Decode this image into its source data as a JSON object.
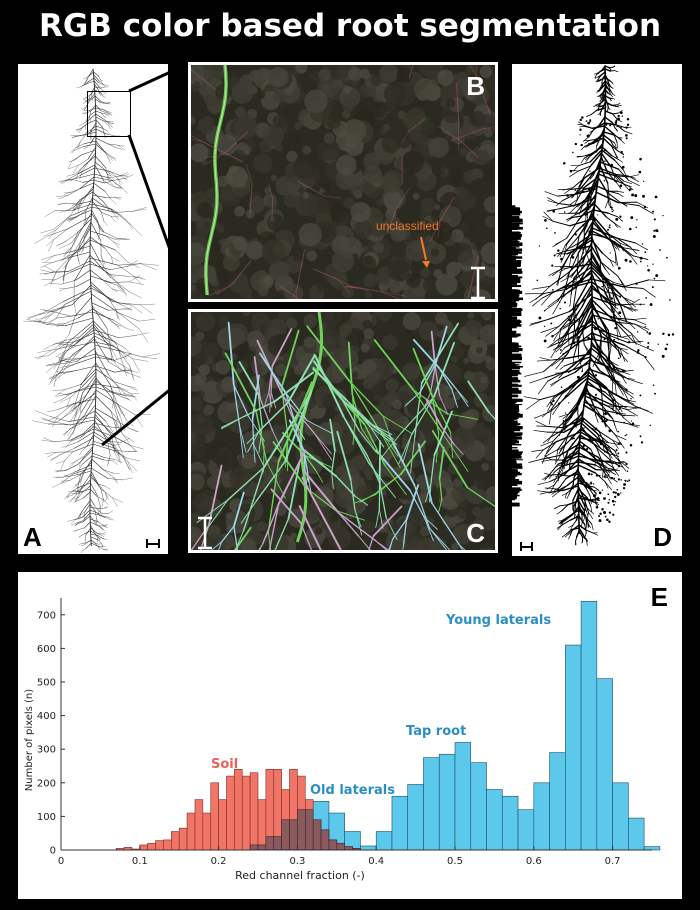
{
  "title": "RGB color based root segmentation",
  "panels": {
    "a": "A",
    "b": "B",
    "c": "C",
    "d": "D",
    "e": "E"
  },
  "annotations": {
    "unclassified": "unclassified"
  },
  "colors": {
    "soil": "#f07566",
    "roots": "#5bc8ec",
    "soil_label": "#e8625a",
    "root_label": "#2b8fc4",
    "overlap": "#8a5a5e"
  },
  "chart_data": {
    "type": "bar",
    "xlabel": "Red channel fraction (-)",
    "ylabel": "Number of pixels (n)",
    "xlim": [
      0,
      0.75
    ],
    "ylim": [
      0,
      750
    ],
    "xticks": [
      "0",
      "0.1",
      "0.2",
      "0.3",
      "0.4",
      "0.5",
      "0.6",
      "0.7"
    ],
    "yticks": [
      "0",
      "100",
      "200",
      "300",
      "400",
      "500",
      "600",
      "700"
    ],
    "annotations": [
      "Soil",
      "Old laterals",
      "Tap root",
      "Young laterals"
    ],
    "series": [
      {
        "name": "Soil",
        "color": "#f07566",
        "bin_width": 0.01,
        "bins": [
          [
            0.07,
            5
          ],
          [
            0.08,
            8
          ],
          [
            0.09,
            3
          ],
          [
            0.1,
            15
          ],
          [
            0.11,
            20
          ],
          [
            0.12,
            28
          ],
          [
            0.13,
            30
          ],
          [
            0.14,
            55
          ],
          [
            0.15,
            65
          ],
          [
            0.16,
            110
          ],
          [
            0.17,
            150
          ],
          [
            0.18,
            110
          ],
          [
            0.19,
            200
          ],
          [
            0.2,
            150
          ],
          [
            0.21,
            220
          ],
          [
            0.22,
            240
          ],
          [
            0.23,
            220
          ],
          [
            0.24,
            230
          ],
          [
            0.25,
            150
          ],
          [
            0.26,
            240
          ],
          [
            0.27,
            240
          ],
          [
            0.28,
            180
          ],
          [
            0.29,
            240
          ],
          [
            0.3,
            220
          ],
          [
            0.31,
            150
          ],
          [
            0.32,
            90
          ],
          [
            0.33,
            60
          ],
          [
            0.34,
            30
          ],
          [
            0.35,
            20
          ],
          [
            0.36,
            10
          ],
          [
            0.37,
            5
          ]
        ]
      },
      {
        "name": "Roots",
        "color": "#5bc8ec",
        "bin_width": 0.02,
        "bins": [
          [
            0.24,
            15
          ],
          [
            0.26,
            40
          ],
          [
            0.28,
            90
          ],
          [
            0.3,
            120
          ],
          [
            0.32,
            145
          ],
          [
            0.34,
            110
          ],
          [
            0.36,
            55
          ],
          [
            0.38,
            12
          ],
          [
            0.4,
            55
          ],
          [
            0.42,
            160
          ],
          [
            0.44,
            195
          ],
          [
            0.46,
            275
          ],
          [
            0.48,
            285
          ],
          [
            0.5,
            320
          ],
          [
            0.52,
            260
          ],
          [
            0.54,
            180
          ],
          [
            0.56,
            160
          ],
          [
            0.58,
            120
          ],
          [
            0.6,
            200
          ],
          [
            0.62,
            290
          ],
          [
            0.64,
            610
          ],
          [
            0.66,
            740
          ],
          [
            0.68,
            510
          ],
          [
            0.7,
            200
          ],
          [
            0.72,
            95
          ],
          [
            0.74,
            10
          ]
        ]
      }
    ]
  }
}
